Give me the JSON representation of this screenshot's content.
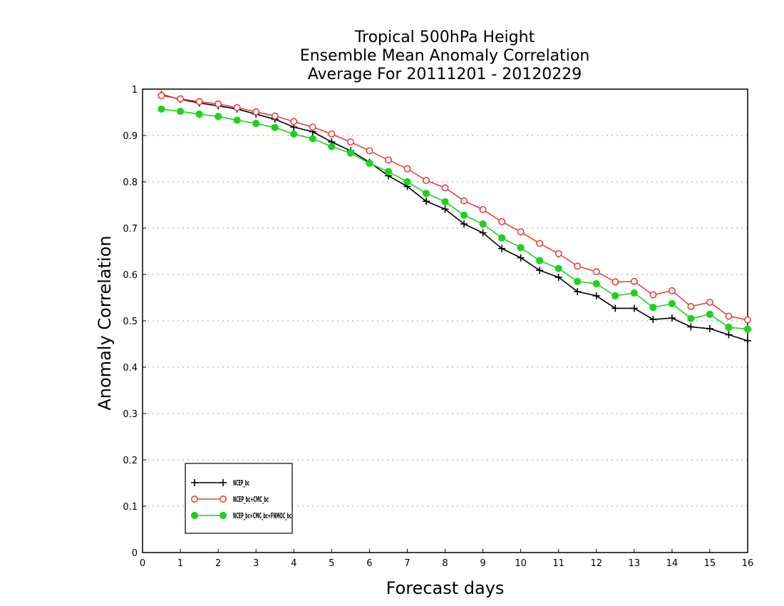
{
  "chart_data": {
    "type": "line",
    "title_lines": [
      "Tropical 500hPa Height",
      "Ensemble Mean Anomaly Correlation",
      "Average For 20111201 - 20120229"
    ],
    "xlabel": "Forecast days",
    "ylabel": "Anomaly Correlation",
    "xlim": [
      0,
      16
    ],
    "ylim": [
      0,
      1
    ],
    "x_ticks": [
      0,
      1,
      2,
      3,
      4,
      5,
      6,
      7,
      8,
      9,
      10,
      11,
      12,
      13,
      14,
      15,
      16
    ],
    "x_tick_labels": [
      "0",
      "1",
      "2",
      "3",
      "4",
      "5",
      "6",
      "7",
      "8",
      "9",
      "10",
      "11",
      "12",
      "13",
      "14",
      "15",
      "16"
    ],
    "y_ticks": [
      0,
      0.1,
      0.2,
      0.3,
      0.4,
      0.5,
      0.6,
      0.7,
      0.8,
      0.9,
      1
    ],
    "y_tick_labels": [
      "0",
      "0.1",
      "0.2",
      "0.3",
      "0.4",
      "0.5",
      "0.6",
      "0.7",
      "0.8",
      "0.9",
      "1"
    ],
    "grid": "horizontal dotted",
    "legend_position": "bottom-left",
    "x": [
      0.5,
      1.0,
      1.5,
      2.0,
      2.5,
      3.0,
      3.5,
      4.0,
      4.5,
      5.0,
      5.5,
      6.0,
      6.5,
      7.0,
      7.5,
      8.0,
      8.5,
      9.0,
      9.5,
      10.0,
      10.5,
      11.0,
      11.5,
      12.0,
      12.5,
      13.0,
      13.5,
      14.0,
      14.5,
      15.0,
      15.5,
      16.0
    ],
    "series": [
      {
        "name": "NCEP_bc",
        "color": "#000000",
        "marker": "plus",
        "values": [
          0.988,
          0.978,
          0.97,
          0.964,
          0.957,
          0.946,
          0.935,
          0.918,
          0.908,
          0.886,
          0.867,
          0.842,
          0.813,
          0.79,
          0.758,
          0.741,
          0.709,
          0.69,
          0.656,
          0.636,
          0.609,
          0.594,
          0.563,
          0.554,
          0.527,
          0.527,
          0.503,
          0.506,
          0.487,
          0.483,
          0.47,
          0.457
        ]
      },
      {
        "name": "NCEP_bc+CMC_bc",
        "color": "#e84040",
        "marker": "open-circle",
        "values": [
          0.986,
          0.979,
          0.973,
          0.968,
          0.96,
          0.951,
          0.942,
          0.93,
          0.918,
          0.903,
          0.886,
          0.867,
          0.847,
          0.828,
          0.803,
          0.787,
          0.759,
          0.74,
          0.714,
          0.692,
          0.667,
          0.645,
          0.618,
          0.606,
          0.584,
          0.585,
          0.556,
          0.565,
          0.531,
          0.54,
          0.51,
          0.502
        ]
      },
      {
        "name": "NCEP_bc+CMC_bc+FNMOC_bc",
        "color": "#1ed11e",
        "marker": "filled-circle",
        "values": [
          0.957,
          0.952,
          0.946,
          0.941,
          0.933,
          0.926,
          0.917,
          0.903,
          0.893,
          0.876,
          0.862,
          0.84,
          0.822,
          0.8,
          0.775,
          0.757,
          0.728,
          0.709,
          0.679,
          0.658,
          0.63,
          0.613,
          0.585,
          0.58,
          0.554,
          0.56,
          0.529,
          0.537,
          0.505,
          0.514,
          0.486,
          0.482
        ]
      }
    ]
  }
}
